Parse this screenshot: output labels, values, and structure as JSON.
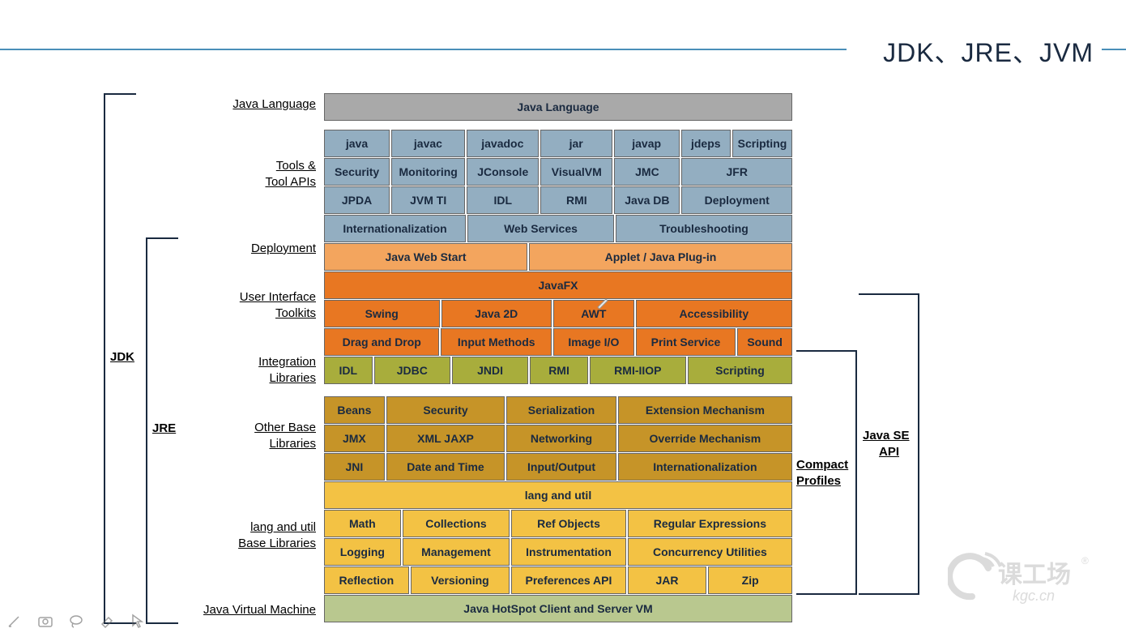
{
  "header": {
    "title": "JDK、JRE、JVM"
  },
  "labels": {
    "javaLanguage": "Java Language",
    "toolsApis1": "Tools &",
    "toolsApis2": "Tool APIs",
    "deployment": "Deployment",
    "uiToolkits1": "User Interface",
    "uiToolkits2": "Toolkits",
    "integration1": "Integration",
    "integration2": "Libraries",
    "otherBase1": "Other Base",
    "otherBase2": "Libraries",
    "langUtil1": "lang and util",
    "langUtil2": "Base Libraries",
    "jvm": "Java Virtual Machine",
    "jdk": "JDK",
    "jre": "JRE",
    "compact1": "Compact",
    "compact2": "Profiles",
    "javase1": "Java SE",
    "javase2": "API"
  },
  "rows": {
    "javaLang": {
      "cells": [
        "Java Language"
      ],
      "widths": [
        578
      ],
      "color": "c-gray"
    },
    "tools1": {
      "cells": [
        "java",
        "javac",
        "javadoc",
        "jar",
        "javap",
        "jdeps",
        "Scripting"
      ],
      "widths": [
        82,
        92,
        90,
        90,
        82,
        62,
        75
      ],
      "color": "c-blue"
    },
    "tools2": {
      "cells": [
        "Security",
        "Monitoring",
        "JConsole",
        "VisualVM",
        "JMC",
        "JFR"
      ],
      "widths": [
        82,
        92,
        90,
        90,
        82,
        138
      ],
      "color": "c-blue"
    },
    "tools3": {
      "cells": [
        "JPDA",
        "JVM TI",
        "IDL",
        "RMI",
        "Java DB",
        "Deployment"
      ],
      "widths": [
        82,
        92,
        90,
        90,
        82,
        138
      ],
      "color": "c-blue"
    },
    "tools4": {
      "cells": [
        "Internationalization",
        "Web Services",
        "Troubleshooting"
      ],
      "widths": [
        175,
        181,
        218
      ],
      "color": "c-blue"
    },
    "deploy": {
      "cells": [
        "Java Web Start",
        "Applet / Java Plug-in"
      ],
      "widths": [
        251,
        325
      ],
      "color": "c-lorange"
    },
    "javafx": {
      "cells": [
        "JavaFX"
      ],
      "widths": [
        578
      ],
      "color": "c-orange"
    },
    "ui1": {
      "cells": [
        "Swing",
        "Java 2D",
        "AWT",
        "Accessibility"
      ],
      "widths": [
        143,
        137,
        100,
        194
      ],
      "color": "c-orange"
    },
    "ui2": {
      "cells": [
        "Drag and Drop",
        "Input Methods",
        "Image I/O",
        "Print Service",
        "Sound"
      ],
      "widths": [
        143,
        137,
        100,
        124,
        68
      ],
      "color": "c-orange"
    },
    "integ": {
      "cells": [
        "IDL",
        "JDBC",
        "JNDI",
        "RMI",
        "RMI-IIOP",
        "Scripting"
      ],
      "widths": [
        60,
        95,
        95,
        72,
        120,
        130
      ],
      "color": "c-olive"
    },
    "other1": {
      "cells": [
        "Beans",
        "Security",
        "Serialization",
        "Extension Mechanism"
      ],
      "widths": [
        75,
        147,
        136,
        216
      ],
      "color": "c-brown"
    },
    "other2": {
      "cells": [
        "JMX",
        "XML JAXP",
        "Networking",
        "Override Mechanism"
      ],
      "widths": [
        75,
        147,
        136,
        216
      ],
      "color": "c-brown"
    },
    "other3": {
      "cells": [
        "JNI",
        "Date and Time",
        "Input/Output",
        "Internationalization"
      ],
      "widths": [
        75,
        147,
        136,
        216
      ],
      "color": "c-brown"
    },
    "langutil0": {
      "cells": [
        "lang and util"
      ],
      "widths": [
        578
      ],
      "color": "c-gold"
    },
    "langutil1": {
      "cells": [
        "Math",
        "Collections",
        "Ref Objects",
        "Regular Expressions"
      ],
      "widths": [
        95,
        133,
        142,
        204
      ],
      "color": "c-gold"
    },
    "langutil2": {
      "cells": [
        "Logging",
        "Management",
        "Instrumentation",
        "Concurrency Utilities"
      ],
      "widths": [
        95,
        133,
        142,
        204
      ],
      "color": "c-gold"
    },
    "langutil3": {
      "cells": [
        "Reflection",
        "Versioning",
        "Preferences API",
        "JAR",
        "Zip"
      ],
      "widths": [
        105,
        123,
        142,
        98,
        104
      ],
      "color": "c-gold"
    },
    "jvm": {
      "cells": [
        "Java HotSpot Client and Server VM"
      ],
      "widths": [
        578
      ],
      "color": "c-sage"
    }
  },
  "logo": {
    "text": "课工场",
    "sub": "kgc.cn"
  }
}
